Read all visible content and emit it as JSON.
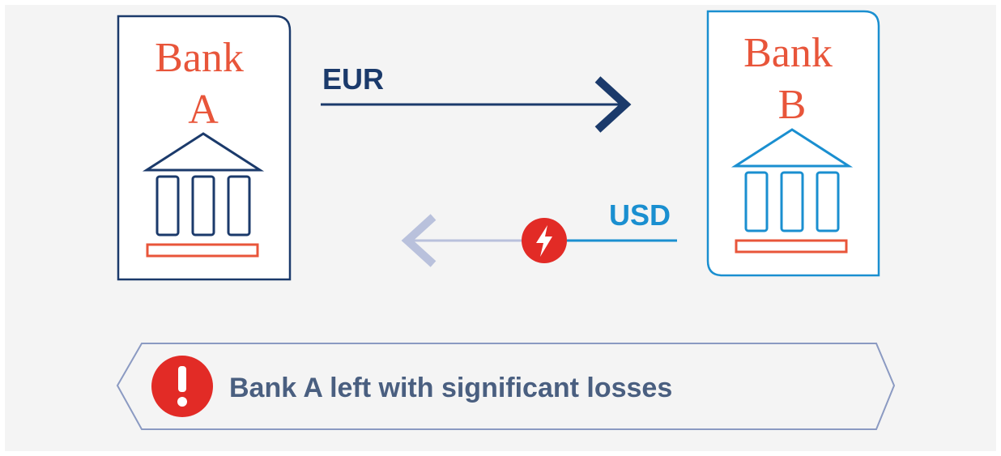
{
  "banks": [
    {
      "label_line1": "Bank",
      "label_line2": "A"
    },
    {
      "label_line1": "Bank",
      "label_line2": "B"
    }
  ],
  "flows": [
    {
      "currency": "EUR"
    },
    {
      "currency": "USD"
    }
  ],
  "message": "Bank A left with significant losses"
}
